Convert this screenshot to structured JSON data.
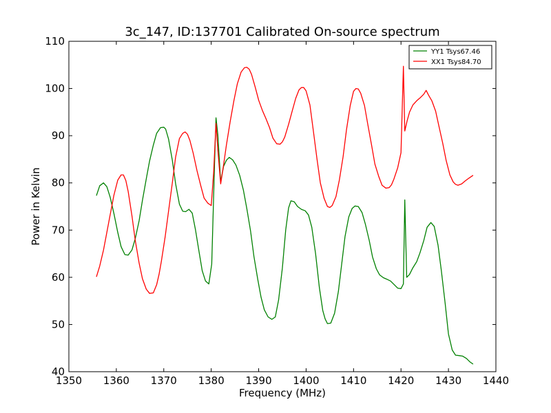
{
  "chart_data": {
    "type": "line",
    "title": "3c_147, ID:137701 Calibrated On-source spectrum",
    "xlabel": "Frequency (MHz)",
    "ylabel": "Power in Kelvin",
    "xlim": [
      1350,
      1440
    ],
    "ylim": [
      40,
      110
    ],
    "xticks": [
      1350,
      1360,
      1370,
      1380,
      1390,
      1400,
      1410,
      1420,
      1430,
      1440
    ],
    "yticks": [
      40,
      50,
      60,
      70,
      80,
      90,
      100,
      110
    ],
    "grid": false,
    "legend_position": "top-right",
    "series": [
      {
        "name": "YY1 Tsys67.46",
        "color": "#008000",
        "x": [
          1355.8,
          1356.5,
          1357.3,
          1358.0,
          1358.7,
          1359.5,
          1360.3,
          1361.0,
          1361.8,
          1362.5,
          1363.3,
          1364.0,
          1364.8,
          1365.5,
          1366.3,
          1367.0,
          1367.8,
          1368.5,
          1369.3,
          1370.0,
          1370.4,
          1371.0,
          1371.8,
          1372.5,
          1373.3,
          1374.0,
          1374.6,
          1375.3,
          1376.0,
          1376.7,
          1377.4,
          1378.1,
          1378.8,
          1379.5,
          1380.1,
          1380.7,
          1381.0,
          1381.4,
          1382.0,
          1382.6,
          1383.2,
          1383.8,
          1384.5,
          1385.2,
          1386.0,
          1386.8,
          1387.5,
          1388.3,
          1389.0,
          1389.8,
          1390.5,
          1391.2,
          1392.0,
          1392.8,
          1393.5,
          1394.2,
          1395.0,
          1395.7,
          1396.3,
          1396.8,
          1397.5,
          1398.2,
          1399.0,
          1399.8,
          1400.5,
          1401.2,
          1402.0,
          1402.8,
          1403.5,
          1404.0,
          1404.5,
          1405.2,
          1406.0,
          1406.8,
          1407.5,
          1408.2,
          1409.0,
          1409.7,
          1410.3,
          1411.0,
          1411.8,
          1412.5,
          1413.3,
          1414.0,
          1414.8,
          1415.5,
          1416.3,
          1417.0,
          1417.8,
          1418.5,
          1419.3,
          1420.0,
          1420.5,
          1420.8,
          1421.2,
          1421.8,
          1422.5,
          1423.3,
          1424.0,
          1424.8,
          1425.5,
          1426.3,
          1427.0,
          1427.8,
          1428.5,
          1429.3,
          1430.0,
          1430.8,
          1431.5,
          1432.3,
          1433.0,
          1433.8,
          1434.5,
          1435.2
        ],
        "y": [
          77.3,
          79.4,
          80.0,
          79.2,
          77.0,
          73.5,
          69.5,
          66.5,
          64.8,
          64.7,
          65.8,
          68.2,
          72.0,
          76.3,
          80.8,
          84.6,
          88.0,
          90.5,
          91.7,
          91.8,
          91.4,
          89.3,
          84.8,
          79.8,
          75.5,
          74.0,
          73.9,
          74.4,
          73.6,
          70.0,
          65.6,
          61.4,
          59.2,
          58.6,
          62.8,
          84.0,
          93.8,
          90.2,
          80.2,
          83.5,
          84.8,
          85.4,
          84.9,
          83.8,
          81.6,
          78.4,
          74.6,
          69.8,
          64.4,
          59.6,
          55.8,
          53.1,
          51.6,
          51.1,
          51.6,
          55.2,
          62.0,
          70.0,
          74.7,
          76.2,
          76.0,
          75.0,
          74.4,
          74.1,
          73.2,
          70.6,
          65.0,
          57.8,
          53.0,
          51.2,
          50.2,
          50.3,
          52.4,
          57.0,
          62.8,
          68.6,
          72.8,
          74.6,
          75.1,
          75.0,
          73.7,
          71.2,
          67.8,
          64.3,
          61.8,
          60.5,
          59.9,
          59.6,
          59.2,
          58.5,
          57.7,
          57.6,
          58.6,
          76.4,
          60.0,
          60.6,
          62.0,
          63.3,
          65.2,
          67.8,
          70.6,
          71.6,
          70.8,
          66.8,
          61.4,
          54.5,
          48.0,
          44.6,
          43.5,
          43.4,
          43.3,
          42.8,
          42.1,
          41.6
        ]
      },
      {
        "name": "XX1 Tsys84.70",
        "color": "#ff0000",
        "x": [
          1355.8,
          1356.5,
          1357.3,
          1358.0,
          1358.7,
          1359.5,
          1360.3,
          1361.0,
          1361.5,
          1362.0,
          1362.5,
          1363.3,
          1364.0,
          1364.8,
          1365.5,
          1366.3,
          1367.0,
          1367.8,
          1368.5,
          1369.0,
          1369.5,
          1370.3,
          1371.0,
          1371.8,
          1372.5,
          1373.3,
          1374.0,
          1374.5,
          1375.0,
          1375.5,
          1376.2,
          1377.0,
          1377.8,
          1378.5,
          1379.3,
          1380.0,
          1380.5,
          1381.0,
          1381.4,
          1382.0,
          1382.6,
          1383.2,
          1384.0,
          1384.8,
          1385.5,
          1386.3,
          1387.0,
          1387.5,
          1388.0,
          1388.5,
          1389.3,
          1390.0,
          1390.8,
          1391.5,
          1392.3,
          1393.0,
          1393.8,
          1394.5,
          1395.0,
          1395.5,
          1396.3,
          1397.0,
          1397.8,
          1398.5,
          1399.0,
          1399.5,
          1400.0,
          1400.8,
          1401.5,
          1402.3,
          1403.0,
          1403.8,
          1404.5,
          1405.0,
          1405.5,
          1406.3,
          1407.0,
          1407.8,
          1408.5,
          1409.3,
          1410.0,
          1410.5,
          1411.0,
          1411.5,
          1412.3,
          1413.0,
          1413.8,
          1414.5,
          1415.3,
          1416.0,
          1416.8,
          1417.5,
          1418.0,
          1418.5,
          1419.3,
          1420.0,
          1420.5,
          1420.8,
          1421.3,
          1421.8,
          1422.5,
          1423.3,
          1424.0,
          1424.8,
          1425.3,
          1425.8,
          1426.5,
          1427.3,
          1428.0,
          1428.8,
          1429.5,
          1430.3,
          1431.0,
          1431.5,
          1432.0,
          1432.8,
          1433.5,
          1434.3,
          1435.2
        ],
        "y": [
          60.1,
          62.4,
          65.8,
          69.5,
          73.2,
          77.4,
          80.6,
          81.7,
          81.7,
          80.5,
          78.2,
          73.0,
          67.8,
          63.0,
          59.7,
          57.5,
          56.6,
          56.7,
          58.4,
          60.6,
          63.4,
          68.6,
          74.0,
          80.0,
          85.5,
          89.4,
          90.5,
          90.8,
          90.3,
          89.0,
          86.3,
          82.6,
          79.4,
          76.8,
          75.7,
          75.2,
          82.0,
          92.6,
          87.0,
          79.8,
          83.8,
          88.0,
          93.0,
          97.5,
          101.0,
          103.5,
          104.4,
          104.5,
          104.1,
          103.0,
          100.2,
          97.5,
          95.3,
          93.7,
          91.7,
          89.5,
          88.3,
          88.2,
          88.7,
          89.7,
          92.4,
          95.0,
          97.9,
          99.7,
          100.2,
          100.2,
          99.5,
          96.5,
          91.2,
          85.0,
          80.0,
          76.7,
          75.0,
          74.8,
          75.2,
          77.1,
          80.6,
          85.6,
          91.2,
          96.4,
          99.4,
          100.0,
          99.9,
          99.0,
          96.4,
          92.4,
          88.0,
          84.0,
          81.4,
          79.5,
          78.9,
          79.0,
          79.6,
          80.8,
          83.2,
          86.4,
          104.7,
          91.0,
          93.2,
          95.0,
          96.5,
          97.4,
          98.0,
          98.8,
          99.6,
          98.6,
          97.4,
          95.2,
          92.0,
          88.4,
          84.8,
          81.7,
          80.2,
          79.7,
          79.5,
          79.8,
          80.4,
          81.0,
          81.6
        ]
      }
    ]
  }
}
